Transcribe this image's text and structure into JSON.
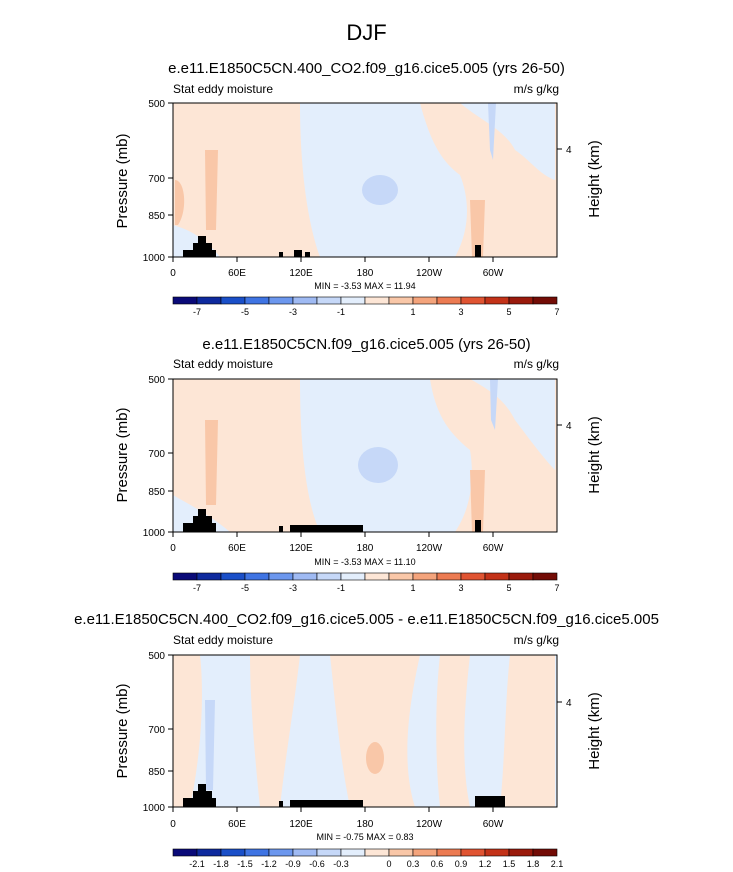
{
  "page": {
    "title": "DJF"
  },
  "chart_data": [
    {
      "type": "heatmap",
      "title": "e.e11.E1850C5CN.400_CO2.f09_g16.cice5.005 (yrs 26-50)",
      "left_label": "Stat eddy moisture",
      "right_label": "m/s g/kg",
      "ylabel": "Pressure (mb)",
      "y2label": "Height (km)",
      "y_ticks": [
        "500",
        "700",
        "850",
        "1000"
      ],
      "y2_ticks": [
        "4"
      ],
      "x_ticks": [
        "0",
        "60E",
        "120E",
        "180",
        "120W",
        "60W"
      ],
      "minmax": "MIN = -3.53  MAX = 11.94",
      "colorbar_labels": [
        "-7",
        "-5",
        "-3",
        "-1",
        "1",
        "3",
        "5",
        "7"
      ],
      "colorbar_colors": [
        "#0a0a78",
        "#0e2a9e",
        "#1a4fc8",
        "#3f74e3",
        "#6c97ee",
        "#9fbaf3",
        "#c6d8f8",
        "#e3eefc",
        "#fde6d6",
        "#f9c7a8",
        "#f4a47c",
        "#ec7b52",
        "#e05432",
        "#c33218",
        "#9a1a0c",
        "#730c06"
      ]
    },
    {
      "type": "heatmap",
      "title": "e.e11.E1850C5CN.f09_g16.cice5.005 (yrs 26-50)",
      "left_label": "Stat eddy moisture",
      "right_label": "m/s g/kg",
      "ylabel": "Pressure (mb)",
      "y2label": "Height (km)",
      "y_ticks": [
        "500",
        "700",
        "850",
        "1000"
      ],
      "y2_ticks": [
        "4"
      ],
      "x_ticks": [
        "0",
        "60E",
        "120E",
        "180",
        "120W",
        "60W"
      ],
      "minmax": "MIN = -3.53  MAX = 11.10",
      "colorbar_labels": [
        "-7",
        "-5",
        "-3",
        "-1",
        "1",
        "3",
        "5",
        "7"
      ],
      "colorbar_colors": [
        "#0a0a78",
        "#0e2a9e",
        "#1a4fc8",
        "#3f74e3",
        "#6c97ee",
        "#9fbaf3",
        "#c6d8f8",
        "#e3eefc",
        "#fde6d6",
        "#f9c7a8",
        "#f4a47c",
        "#ec7b52",
        "#e05432",
        "#c33218",
        "#9a1a0c",
        "#730c06"
      ]
    },
    {
      "type": "heatmap",
      "title": "e.e11.E1850C5CN.400_CO2.f09_g16.cice5.005 - e.e11.E1850C5CN.f09_g16.cice5.005",
      "left_label": "Stat eddy moisture",
      "right_label": "m/s g/kg",
      "ylabel": "Pressure (mb)",
      "y2label": "Height (km)",
      "y_ticks": [
        "500",
        "700",
        "850",
        "1000"
      ],
      "y2_ticks": [
        "4"
      ],
      "x_ticks": [
        "0",
        "60E",
        "120E",
        "180",
        "120W",
        "60W"
      ],
      "minmax": "MIN = -0.75  MAX = 0.83",
      "colorbar_labels": [
        "-2.1",
        "-1.8",
        "-1.5",
        "-1.2",
        "-0.9",
        "-0.6",
        "-0.3",
        "0",
        "0.3",
        "0.6",
        "0.9",
        "1.2",
        "1.5",
        "1.8",
        "2.1"
      ],
      "colorbar_colors": [
        "#0a0a78",
        "#0e2a9e",
        "#1a4fc8",
        "#3f74e3",
        "#6c97ee",
        "#9fbaf3",
        "#c6d8f8",
        "#e3eefc",
        "#fde6d6",
        "#f9c7a8",
        "#f4a47c",
        "#ec7b52",
        "#e05432",
        "#c33218",
        "#9a1a0c",
        "#730c06"
      ]
    }
  ]
}
